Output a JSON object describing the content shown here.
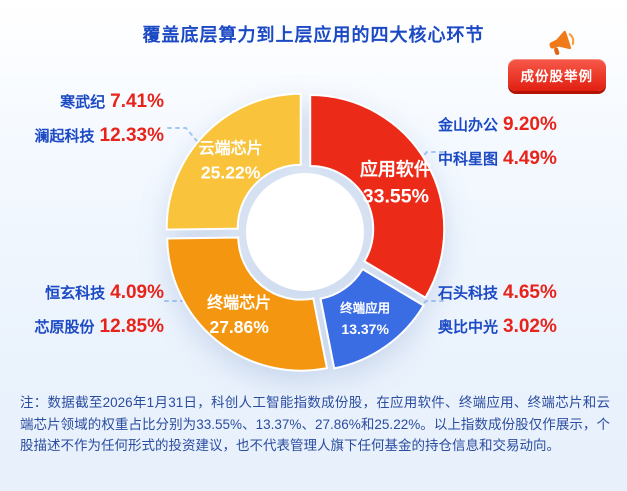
{
  "title": "覆盖底层算力到上层应用的四大核心环节",
  "badge": {
    "label": "成份股举例"
  },
  "chart_data": {
    "type": "pie",
    "donut": true,
    "title": "覆盖底层算力到上层应用的四大核心环节",
    "unit": "%",
    "start_angle_deg": 0,
    "legend_position": "in-slice",
    "slices": [
      {
        "label": "应用软件",
        "value": 33.55,
        "color": "#ec2a18"
      },
      {
        "label": "终端应用",
        "value": 13.37,
        "color": "#3a6de4"
      },
      {
        "label": "终端芯片",
        "value": 27.86,
        "color": "#f4960f"
      },
      {
        "label": "云端芯片",
        "value": 25.22,
        "color": "#f9c33c"
      }
    ]
  },
  "stock_groups": [
    {
      "id": "cloud-chip-stocks",
      "stocks": [
        {
          "name": "寒武纪",
          "weight": "7.41%"
        },
        {
          "name": "澜起科技",
          "weight": "12.33%"
        }
      ]
    },
    {
      "id": "app-software-stocks",
      "stocks": [
        {
          "name": "金山办公",
          "weight": "9.20%"
        },
        {
          "name": "中科星图",
          "weight": "4.49%"
        }
      ]
    },
    {
      "id": "terminal-chip-stocks",
      "stocks": [
        {
          "name": "恒玄科技",
          "weight": "4.09%"
        },
        {
          "name": "芯原股份",
          "weight": "12.85%"
        }
      ]
    },
    {
      "id": "terminal-app-stocks",
      "stocks": [
        {
          "name": "石头科技",
          "weight": "4.65%"
        },
        {
          "name": "奥比中光",
          "weight": "3.02%"
        }
      ]
    }
  ],
  "note": "注：数据截至2026年1月31日，科创人工智能指数成份股，在应用软件、终端应用、终端芯片和云端芯片领域的权重占比分别为33.55%、13.37%、27.86%和25.22%。以上指数成份股仅作展示，个股描述不作为任何形式的投资建议，也不代表管理人旗下任何基金的持仓信息和交易动向。",
  "colors": {
    "accent_blue": "#1c49c4",
    "accent_red": "#e7231a",
    "badge_red": "#e11f10"
  }
}
